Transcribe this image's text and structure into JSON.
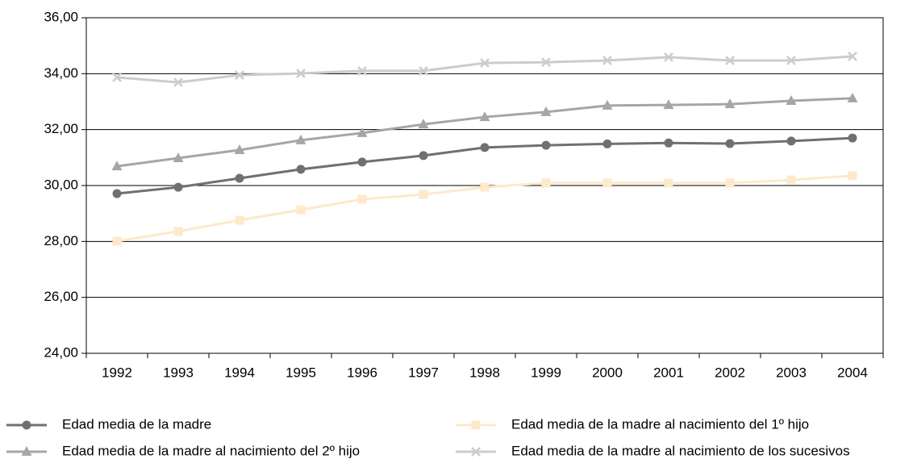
{
  "chart_data": {
    "type": "line",
    "categories": [
      "1992",
      "1993",
      "1994",
      "1995",
      "1996",
      "1997",
      "1998",
      "1999",
      "2000",
      "2001",
      "2002",
      "2003",
      "2004"
    ],
    "series": [
      {
        "name": "Edad media de la madre",
        "color": "#707070",
        "marker": "circle",
        "values": [
          29.71,
          29.94,
          30.26,
          30.58,
          30.84,
          31.07,
          31.36,
          31.44,
          31.49,
          31.52,
          31.5,
          31.59,
          31.7
        ]
      },
      {
        "name": "Edad media de la madre al nacimiento del 1º hijo",
        "color": "#fde9cc",
        "marker": "square",
        "values": [
          28.01,
          28.36,
          28.76,
          29.13,
          29.51,
          29.68,
          29.94,
          30.09,
          30.09,
          30.09,
          30.09,
          30.2,
          30.35
        ]
      },
      {
        "name": "Edad media de la madre al nacimiento del 2º hijo",
        "color": "#a6a6a6",
        "marker": "triangle",
        "values": [
          30.69,
          30.98,
          31.27,
          31.62,
          31.88,
          32.19,
          32.45,
          32.63,
          32.86,
          32.88,
          32.91,
          33.03,
          33.12
        ]
      },
      {
        "name": "Edad media de la madre al nacimiento de los sucesivos",
        "color": "#cccccc",
        "marker": "x",
        "values": [
          33.87,
          33.69,
          33.95,
          34.01,
          34.1,
          34.1,
          34.38,
          34.41,
          34.47,
          34.59,
          34.47,
          34.47,
          34.62
        ]
      }
    ],
    "ylim": [
      24,
      36
    ],
    "yticks": [
      {
        "value": 24,
        "label": "24,00"
      },
      {
        "value": 26,
        "label": "26,00"
      },
      {
        "value": 28,
        "label": "28,00"
      },
      {
        "value": 30,
        "label": "30,00"
      },
      {
        "value": 32,
        "label": "32,00"
      },
      {
        "value": 34,
        "label": "34,00"
      },
      {
        "value": 36,
        "label": "36,00"
      }
    ],
    "grid": true
  }
}
